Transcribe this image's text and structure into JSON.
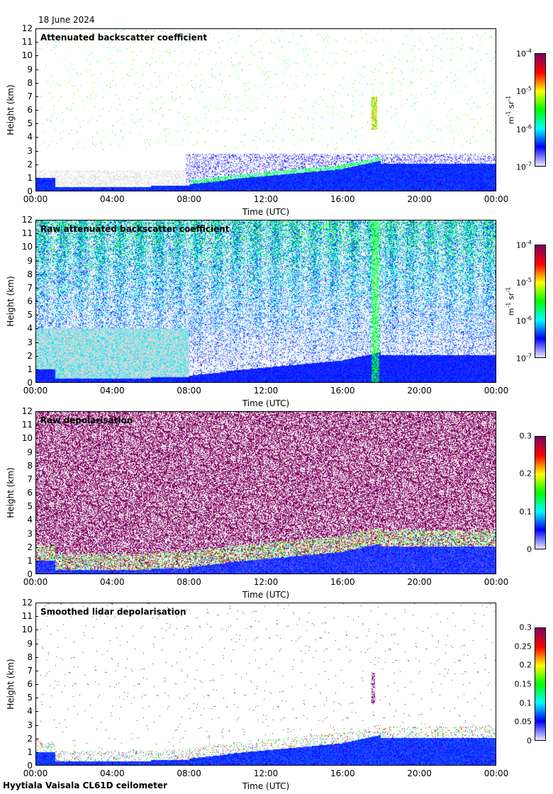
{
  "date_label": "18 June 2024",
  "footer": "Hyytiala Vaisala CL61D ceilometer",
  "colors": {
    "low": "#e6e6ff",
    "blue": "#0000ff",
    "cyan": "#00ffff",
    "green": "#00ff00",
    "yellow": "#ffff00",
    "red": "#ff0000",
    "maroon": "#800060",
    "cloud_gray": "#d8d8d8"
  },
  "chart_data": [
    {
      "type": "heatmap",
      "title": "Attenuated backscatter coefficient",
      "xlabel": "Time (UTC)",
      "ylabel": "Height (km)",
      "x_ticks": [
        "00:00",
        "04:00",
        "08:00",
        "12:00",
        "16:00",
        "20:00",
        "00:00"
      ],
      "y_ticks": [
        "0",
        "1",
        "2",
        "3",
        "4",
        "5",
        "6",
        "7",
        "8",
        "9",
        "10",
        "11",
        "12"
      ],
      "ylim": [
        0,
        12
      ],
      "colorbar": {
        "scale": "log",
        "ticks": [
          {
            "base": "10",
            "exp": "-4"
          },
          {
            "base": "10",
            "exp": "-5"
          },
          {
            "base": "10",
            "exp": "-6"
          },
          {
            "base": "10",
            "exp": "-7"
          }
        ],
        "unit": {
          "a": "m",
          "a_exp": "-1",
          "b": " sr",
          "b_exp": "-1"
        }
      }
    },
    {
      "type": "heatmap",
      "title": "Raw attenuated backscatter coefficient",
      "xlabel": "Time (UTC)",
      "ylabel": "Height (km)",
      "x_ticks": [
        "00:00",
        "04:00",
        "08:00",
        "12:00",
        "16:00",
        "20:00",
        "00:00"
      ],
      "y_ticks": [
        "0",
        "1",
        "2",
        "3",
        "4",
        "5",
        "6",
        "7",
        "8",
        "9",
        "10",
        "11",
        "12"
      ],
      "ylim": [
        0,
        12
      ],
      "colorbar": {
        "scale": "log",
        "ticks": [
          {
            "base": "10",
            "exp": "-4"
          },
          {
            "base": "10",
            "exp": "-5"
          },
          {
            "base": "10",
            "exp": "-6"
          },
          {
            "base": "10",
            "exp": "-7"
          }
        ],
        "unit": {
          "a": "m",
          "a_exp": "-1",
          "b": " sr",
          "b_exp": "-1"
        }
      }
    },
    {
      "type": "heatmap",
      "title": "Raw depolarisation",
      "xlabel": "Time (UTC)",
      "ylabel": "Height (km)",
      "x_ticks": [
        "00:00",
        "04:00",
        "08:00",
        "12:00",
        "16:00",
        "20:00",
        "00:00"
      ],
      "y_ticks": [
        "0",
        "1",
        "2",
        "3",
        "4",
        "5",
        "6",
        "7",
        "8",
        "9",
        "10",
        "11",
        "12"
      ],
      "ylim": [
        0,
        12
      ],
      "colorbar": {
        "scale": "linear",
        "ticks": [
          {
            "base": "0.3"
          },
          {
            "base": "0.2"
          },
          {
            "base": "0.1"
          },
          {
            "base": "0"
          }
        ]
      }
    },
    {
      "type": "heatmap",
      "title": "Smoothed lidar depolarisation",
      "xlabel": "Time (UTC)",
      "ylabel": "Height (km)",
      "x_ticks": [
        "00:00",
        "04:00",
        "08:00",
        "12:00",
        "16:00",
        "20:00",
        "00:00"
      ],
      "y_ticks": [
        "0",
        "1",
        "2",
        "3",
        "4",
        "5",
        "6",
        "7",
        "8",
        "9",
        "10",
        "11",
        "12"
      ],
      "ylim": [
        0,
        12
      ],
      "colorbar": {
        "scale": "linear",
        "ticks": [
          {
            "base": "0.3"
          },
          {
            "base": "0.25"
          },
          {
            "base": "0.2"
          },
          {
            "base": "0.15"
          },
          {
            "base": "0.1"
          },
          {
            "base": "0.05"
          },
          {
            "base": "0"
          }
        ]
      }
    }
  ]
}
